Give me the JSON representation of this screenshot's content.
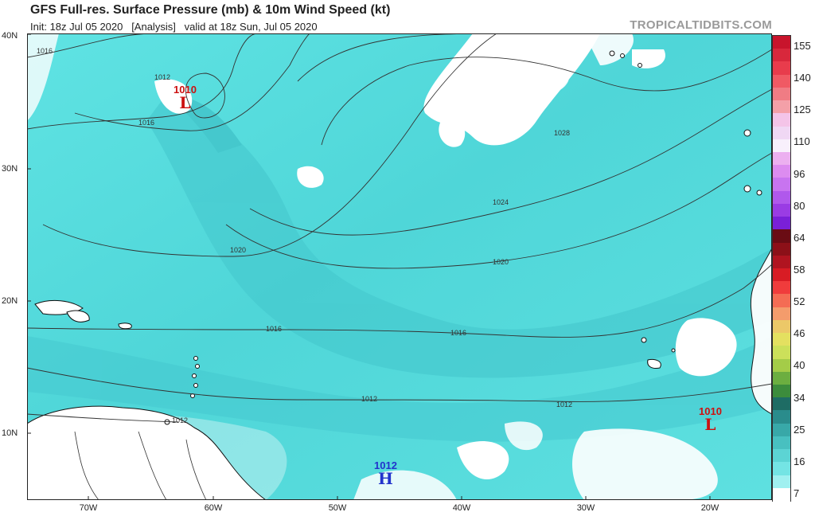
{
  "header": {
    "title": "GFS Full-res. Surface Pressure (mb) & 10m Wind Speed (kt)",
    "subtitle": "Init: 18z Jul 05 2020   [Analysis]   valid at 18z Sun, Jul 05 2020",
    "brand": "TROPICALTIDBITS.COM"
  },
  "axes": {
    "lat_labels": [
      "40N",
      "30N",
      "20N",
      "10N"
    ],
    "lon_labels": [
      "70W",
      "60W",
      "50W",
      "40W",
      "30W",
      "20W"
    ]
  },
  "isobars": {
    "labels": [
      "1016",
      "1012",
      "1016",
      "1020",
      "1016",
      "1016",
      "1012",
      "1012",
      "1028",
      "1024",
      "1020",
      "1012"
    ],
    "levels_mb": [
      1012,
      1016,
      1020,
      1024,
      1028
    ]
  },
  "pressure_systems": [
    {
      "type": "L",
      "pressure": "1010",
      "color": "#cc1111"
    },
    {
      "type": "L",
      "pressure": "1010",
      "color": "#cc1111"
    },
    {
      "type": "H",
      "pressure": "1012",
      "color": "#2233cc"
    }
  ],
  "colorbar": {
    "labels": [
      "155",
      "140",
      "125",
      "110",
      "96",
      "80",
      "64",
      "58",
      "52",
      "46",
      "40",
      "34",
      "25",
      "16",
      "7"
    ],
    "colors": [
      "#c8142c",
      "#d8283c",
      "#e83c4c",
      "#f05a64",
      "#f07c84",
      "#f4a0a8",
      "#f4c4e8",
      "#f0d8f4",
      "#f8f0fc",
      "#ecb0f0",
      "#dc8cf0",
      "#c874f0",
      "#b058ec",
      "#9a3ce4",
      "#7a20d8",
      "#6a0c14",
      "#8c1018",
      "#b01420",
      "#d81c24",
      "#f03c3c",
      "#f46c54",
      "#f49c6c",
      "#ecc868",
      "#e4e060",
      "#cce05a",
      "#a4cc48",
      "#6cae40",
      "#3c8c3c",
      "#1e6c64",
      "#2a8c8c",
      "#38a8a8",
      "#48c0c0",
      "#5cd4d4",
      "#74e4e4",
      "#a0f0f0",
      "#ffffff"
    ]
  },
  "map_colors": {
    "ocean_light": "#5fe3e3",
    "ocean_mid": "#4cd2d4",
    "ocean_dark": "#3cc0c8",
    "calm": "#ffffff",
    "land": "#ffffff"
  }
}
